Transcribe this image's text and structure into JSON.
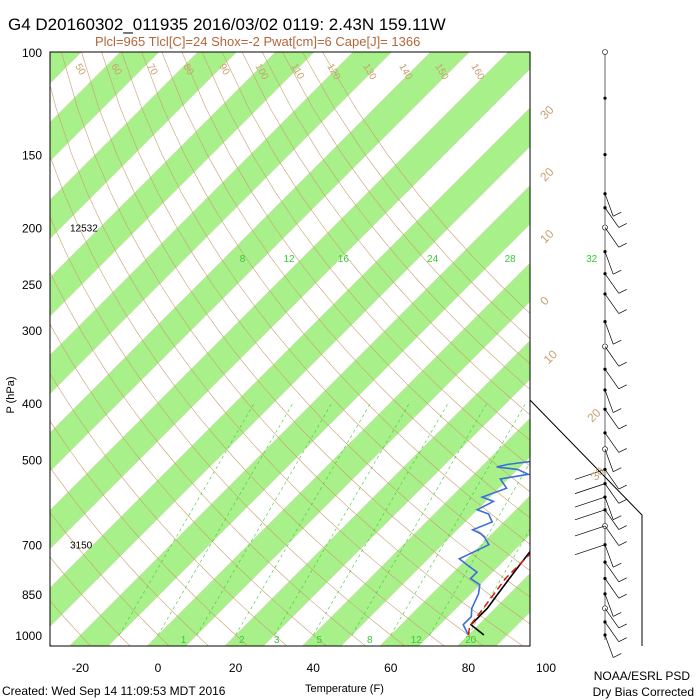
{
  "title": "G4 D20160302_011935 2016/03/02 0119:  2.43N 159.11W",
  "subtitle": "Plcl=965 Tlcl[C]=24 Shox=-2 Pwat[cm]=6 Cape[J]= 1366",
  "footer_left": "Created: Wed Sep 14 11:09:53 MDT 2016",
  "footer_right_1": "NOAA/ESRL PSD",
  "footer_right_2": "Dry Bias Corrected",
  "colors": {
    "band": "#a8f08a",
    "temperature": "#000000",
    "dewpoint": "#3a6fd8",
    "parcel": "#e01414",
    "dry_adiabat": "#c8a070",
    "mixing_ratio": "#33cc33"
  },
  "chart_data": {
    "type": "line",
    "title": "G4 D20160302_011935 2016/03/02 0119:  2.43N 159.11W",
    "xlabel": "Temperature (F)",
    "ylabel": "P (hPa)",
    "y_scale": "log",
    "xlim": [
      -28,
      108
    ],
    "ylim": [
      1050,
      100
    ],
    "x_ticks": [
      -20,
      0,
      20,
      40,
      60,
      80,
      100
    ],
    "x_tick_labels": [
      "-20",
      "0",
      "20",
      "40",
      "60",
      "80",
      "100"
    ],
    "y_ticks": [
      100,
      150,
      200,
      250,
      300,
      400,
      500,
      700,
      850,
      1000
    ],
    "y_tick_labels": [
      "100",
      "150",
      "200",
      "250",
      "300",
      "400",
      "500",
      "700",
      "850",
      "1000"
    ],
    "height_labels": [
      {
        "p": 200,
        "text": "12532"
      },
      {
        "p": 700,
        "text": "3150"
      }
    ],
    "mixing_ratio_labels": [
      {
        "x": -4,
        "text": "8"
      },
      {
        "x": 8,
        "text": "12"
      },
      {
        "x": 22,
        "text": "16"
      },
      {
        "x": 45,
        "text": "24"
      },
      {
        "x": 65,
        "text": "28"
      },
      {
        "x": 86,
        "text": "32"
      }
    ],
    "mixing_ratio_bottom_labels": [
      {
        "x": 4,
        "text": "1"
      },
      {
        "x": 19,
        "text": "2"
      },
      {
        "x": 28,
        "text": "3"
      },
      {
        "x": 39,
        "text": "5"
      },
      {
        "x": 52,
        "text": "8"
      },
      {
        "x": 64,
        "text": "12"
      },
      {
        "x": 78,
        "text": "20"
      }
    ],
    "dry_adiabat_labels": [
      {
        "text": "50"
      },
      {
        "text": "60"
      },
      {
        "text": "70"
      },
      {
        "text": "80"
      },
      {
        "text": "90"
      },
      {
        "text": "100"
      },
      {
        "text": "110"
      },
      {
        "text": "120"
      },
      {
        "text": "130"
      },
      {
        "text": "140"
      },
      {
        "text": "150"
      },
      {
        "text": "160"
      }
    ],
    "isotherm_labels": [
      "30",
      "20",
      "10",
      "0",
      "10",
      "20",
      "30"
    ],
    "series": [
      {
        "name": "Temperature",
        "points": [
          [
            84,
            1000
          ],
          [
            78,
            960
          ],
          [
            78,
            900
          ],
          [
            77,
            850
          ],
          [
            76,
            800
          ],
          [
            75,
            750
          ],
          [
            74,
            700
          ],
          [
            72,
            650
          ],
          [
            71,
            620
          ],
          [
            68,
            600
          ],
          [
            64,
            560
          ],
          [
            62,
            540
          ],
          [
            62,
            500
          ],
          [
            63,
            470
          ],
          [
            64,
            450
          ],
          [
            62,
            420
          ],
          [
            60,
            400
          ],
          [
            58,
            380
          ],
          [
            58,
            360
          ],
          [
            55,
            330
          ],
          [
            50,
            300
          ],
          [
            44,
            270
          ],
          [
            38,
            240
          ],
          [
            30,
            210
          ],
          [
            22,
            185
          ],
          [
            17,
            175
          ]
        ]
      },
      {
        "name": "Dewpoint",
        "points": [
          [
            80,
            1000
          ],
          [
            78,
            980
          ],
          [
            76,
            960
          ],
          [
            76,
            930
          ],
          [
            74,
            900
          ],
          [
            72,
            850
          ],
          [
            70,
            820
          ],
          [
            66,
            800
          ],
          [
            66,
            780
          ],
          [
            62,
            760
          ],
          [
            58,
            740
          ],
          [
            60,
            720
          ],
          [
            62,
            700
          ],
          [
            59,
            680
          ],
          [
            57,
            670
          ],
          [
            54,
            660
          ],
          [
            57,
            640
          ],
          [
            54,
            620
          ],
          [
            50,
            610
          ],
          [
            52,
            590
          ],
          [
            48,
            580
          ],
          [
            52,
            560
          ],
          [
            48,
            540
          ],
          [
            54,
            530
          ],
          [
            50,
            520
          ],
          [
            44,
            515
          ],
          [
            46,
            510
          ],
          [
            55,
            500
          ],
          [
            55,
            480
          ],
          [
            56,
            460
          ],
          [
            55,
            440
          ],
          [
            52,
            420
          ],
          [
            50,
            400
          ],
          [
            48,
            380
          ],
          [
            46,
            360
          ],
          [
            40,
            340
          ],
          [
            38,
            320
          ],
          [
            30,
            300
          ],
          [
            22,
            280
          ],
          [
            16,
            265
          ],
          [
            10,
            250
          ],
          [
            13,
            240
          ],
          [
            16,
            230
          ],
          [
            12,
            220
          ],
          [
            7,
            210
          ],
          [
            4,
            200
          ]
        ]
      },
      {
        "name": "Parcel",
        "points": [
          [
            80,
            1000
          ],
          [
            78,
            965
          ],
          [
            77,
            900
          ],
          [
            76,
            850
          ],
          [
            75,
            800
          ],
          [
            75,
            700
          ],
          [
            73,
            600
          ],
          [
            72,
            500
          ],
          [
            68,
            400
          ],
          [
            62,
            330
          ],
          [
            55,
            280
          ],
          [
            47,
            240
          ],
          [
            38,
            210
          ],
          [
            30,
            190
          ],
          [
            25,
            180
          ]
        ]
      }
    ]
  },
  "wind_barbs": {
    "pressures": [
      100,
      120,
      150,
      175,
      185,
      200,
      220,
      240,
      260,
      290,
      320,
      350,
      380,
      410,
      450,
      480,
      520,
      550,
      580,
      610,
      650,
      700,
      750,
      800,
      850,
      900,
      950,
      1000
    ]
  }
}
